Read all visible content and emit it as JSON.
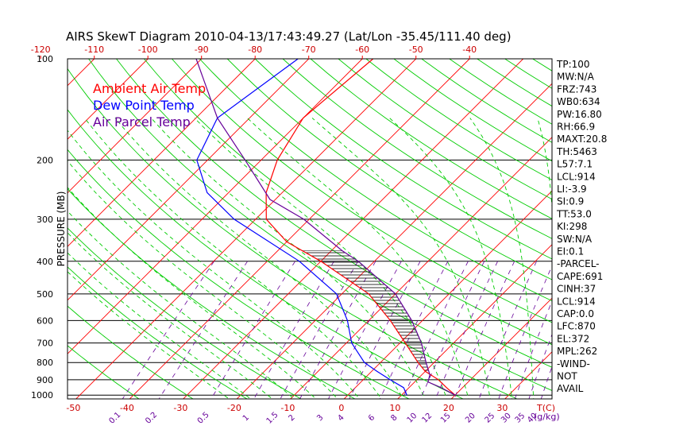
{
  "chart_data": {
    "type": "line",
    "title": "AIRS SkewT Diagram 2010-04-13/17:43:49.27 (Lat/Lon -35.45/111.40 deg)",
    "ylabel": "PRESSURE (MB)",
    "pressure_ticks": [
      "100",
      "200",
      "300",
      "400",
      "500",
      "600",
      "700",
      "800",
      "900",
      "1000"
    ],
    "top_temp_ticks": [
      "-120",
      "-110",
      "-100",
      "-90",
      "-80",
      "-70",
      "-60",
      "-50",
      "-40"
    ],
    "bottom_temp_ticks": [
      "-50",
      "-40",
      "-30",
      "-20",
      "-10",
      "0",
      "10",
      "20",
      "30"
    ],
    "bottom_temp_unit": "T(C)",
    "mixing_ratio_ticks": [
      "0.1",
      "0.2",
      "0.5",
      "1",
      "1.5",
      "2",
      "3",
      "4",
      "6",
      "8",
      "10",
      "12",
      "15",
      "20",
      "25",
      "30",
      "35",
      "40"
    ],
    "mixing_ratio_unit": "(g/kg)",
    "legend": [
      {
        "name": "Ambient Air Temp",
        "color": "#ff0000"
      },
      {
        "name": "Dew Point Temp",
        "color": "#0000ff"
      },
      {
        "name": "Air Parcel Temp",
        "color": "#660099"
      }
    ],
    "series": [
      {
        "name": "Ambient Air Temp",
        "color": "#ff0000",
        "points": [
          [
            1000,
            20
          ],
          [
            950,
            17
          ],
          [
            900,
            14
          ],
          [
            850,
            10
          ],
          [
            800,
            7
          ],
          [
            700,
            1
          ],
          [
            600,
            -6
          ],
          [
            500,
            -15
          ],
          [
            400,
            -30
          ],
          [
            350,
            -40
          ],
          [
            300,
            -48
          ],
          [
            250,
            -53
          ],
          [
            200,
            -57
          ],
          [
            150,
            -60
          ],
          [
            100,
            -58
          ]
        ]
      },
      {
        "name": "Dew Point Temp",
        "color": "#0000ff",
        "points": [
          [
            1000,
            11
          ],
          [
            950,
            9
          ],
          [
            900,
            5
          ],
          [
            850,
            1
          ],
          [
            800,
            -3
          ],
          [
            700,
            -9
          ],
          [
            600,
            -14
          ],
          [
            500,
            -21
          ],
          [
            400,
            -34
          ],
          [
            300,
            -54
          ],
          [
            250,
            -64
          ],
          [
            200,
            -72
          ],
          [
            150,
            -76
          ],
          [
            100,
            -72
          ]
        ]
      },
      {
        "name": "Air Parcel Temp",
        "color": "#660099",
        "points": [
          [
            1000,
            20
          ],
          [
            950,
            16
          ],
          [
            914,
            12.5
          ],
          [
            870,
            11.5
          ],
          [
            800,
            8.5
          ],
          [
            700,
            4
          ],
          [
            600,
            -2
          ],
          [
            500,
            -10
          ],
          [
            400,
            -23
          ],
          [
            372,
            -28
          ],
          [
            300,
            -41
          ],
          [
            262,
            -51
          ],
          [
            200,
            -63
          ],
          [
            150,
            -76
          ],
          [
            100,
            -91
          ]
        ]
      }
    ],
    "indices": [
      "TP:100",
      "MW:N/A",
      "FRZ:743",
      "WB0:634",
      "PW:16.80",
      "RH:66.9",
      "MAXT:20.8",
      "TH:5463",
      "L57:7.1",
      "LCL:914",
      "LI:-3.9",
      "SI:0.9",
      "TT:53.0",
      "KI:298",
      "SW:N/A",
      "EI:0.1",
      "-PARCEL-",
      "CAPE:691",
      "CINH:37",
      "LCL:914",
      "CAP:0.0",
      "LFC:870",
      "EL:372",
      "MPL:262",
      "-WIND-",
      "NOT",
      "AVAIL"
    ]
  },
  "colors": {
    "isotherm": "#ff0000",
    "dry_adiabat": "#00cc00",
    "moist_adiabat": "#00cc00",
    "mixing_ratio": "#660099",
    "temp_tick_label": "#cc0000",
    "mixing_label": "#660099",
    "text": "#000000"
  }
}
